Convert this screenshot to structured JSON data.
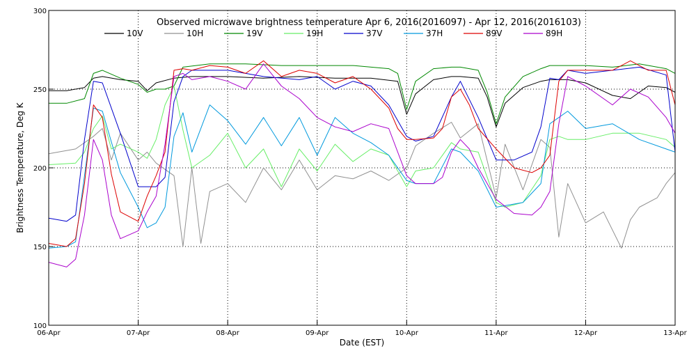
{
  "chart_data": {
    "type": "line",
    "title": "Observed microwave brightness temperature Apr  6, 2016(2016097) - Apr 12, 2016(2016103)",
    "xlabel": "Date (EST)",
    "ylabel": "Brightness Temperature, Deg K",
    "xlim": [
      0,
      7
    ],
    "ylim": [
      100,
      300
    ],
    "x_ticks": [
      {
        "x": 0,
        "label": "06-Apr"
      },
      {
        "x": 1,
        "label": "07-Apr"
      },
      {
        "x": 2,
        "label": "08-Apr"
      },
      {
        "x": 3,
        "label": "09-Apr"
      },
      {
        "x": 4,
        "label": "10-Apr"
      },
      {
        "x": 5,
        "label": "11-Apr"
      },
      {
        "x": 6,
        "label": "12-Apr"
      },
      {
        "x": 7,
        "label": "13-Apr"
      }
    ],
    "y_ticks": [
      {
        "y": 100,
        "label": "100"
      },
      {
        "y": 150,
        "label": "150"
      },
      {
        "y": 200,
        "label": "200"
      },
      {
        "y": 250,
        "label": "250"
      },
      {
        "y": 300,
        "label": "300"
      }
    ],
    "grid": "dotted",
    "legend_position": "top",
    "series": [
      {
        "name": "10V",
        "color": "#000000",
        "x": [
          0,
          0.2,
          0.4,
          0.5,
          0.6,
          0.8,
          1.0,
          1.1,
          1.2,
          1.4,
          1.6,
          2.0,
          2.4,
          2.8,
          3.2,
          3.6,
          3.9,
          4.0,
          4.1,
          4.3,
          4.5,
          4.6,
          4.8,
          4.9,
          5.0,
          5.1,
          5.3,
          5.5,
          5.6,
          5.8,
          6.0,
          6.3,
          6.5,
          6.7,
          6.9,
          7.0
        ],
        "y": [
          249,
          249,
          251,
          257,
          258,
          256,
          255,
          249,
          254,
          257,
          258,
          258,
          257,
          258,
          257,
          257,
          255,
          234,
          247,
          256,
          258,
          258,
          257,
          245,
          226,
          241,
          251,
          255,
          256,
          256,
          254,
          246,
          244,
          252,
          251,
          248
        ]
      },
      {
        "name": "10H",
        "color": "#909090",
        "x": [
          0,
          0.3,
          0.5,
          0.6,
          0.7,
          0.8,
          1.0,
          1.1,
          1.2,
          1.4,
          1.5,
          1.6,
          1.7,
          1.8,
          2.0,
          2.2,
          2.4,
          2.6,
          2.8,
          3.0,
          3.2,
          3.4,
          3.6,
          3.8,
          4.0,
          4.1,
          4.3,
          4.5,
          4.6,
          4.8,
          5.0,
          5.1,
          5.3,
          5.5,
          5.6,
          5.7,
          5.8,
          6.0,
          6.2,
          6.4,
          6.5,
          6.6,
          6.8,
          6.9,
          7.0
        ],
        "y": [
          209,
          212,
          220,
          225,
          205,
          222,
          205,
          210,
          203,
          195,
          150,
          200,
          152,
          185,
          190,
          178,
          200,
          186,
          205,
          186,
          195,
          193,
          198,
          192,
          200,
          214,
          222,
          229,
          219,
          228,
          181,
          215,
          186,
          218,
          213,
          156,
          190,
          165,
          172,
          149,
          167,
          175,
          181,
          190,
          197
        ]
      },
      {
        "name": "19V",
        "color": "#008800",
        "x": [
          0,
          0.2,
          0.4,
          0.5,
          0.6,
          0.8,
          1.0,
          1.1,
          1.2,
          1.3,
          1.4,
          1.5,
          1.8,
          2.2,
          2.6,
          3.0,
          3.4,
          3.8,
          3.9,
          4.0,
          4.1,
          4.3,
          4.5,
          4.6,
          4.8,
          4.9,
          5.0,
          5.1,
          5.3,
          5.5,
          5.6,
          5.8,
          6.0,
          6.3,
          6.6,
          6.9,
          7.0
        ],
        "y": [
          241,
          241,
          244,
          260,
          262,
          257,
          253,
          248,
          250,
          250,
          252,
          264,
          266,
          266,
          265,
          265,
          265,
          263,
          260,
          237,
          255,
          263,
          264,
          264,
          262,
          248,
          228,
          245,
          258,
          263,
          265,
          265,
          265,
          264,
          266,
          263,
          260
        ]
      },
      {
        "name": "19H",
        "color": "#66ee66",
        "x": [
          0,
          0.3,
          0.4,
          0.5,
          0.6,
          0.7,
          0.8,
          1.0,
          1.1,
          1.2,
          1.3,
          1.4,
          1.5,
          1.6,
          1.8,
          2.0,
          2.2,
          2.4,
          2.6,
          2.8,
          3.0,
          3.2,
          3.4,
          3.6,
          3.8,
          4.0,
          4.1,
          4.3,
          4.5,
          4.6,
          4.8,
          5.0,
          5.1,
          5.3,
          5.5,
          5.6,
          5.7,
          5.8,
          6.0,
          6.3,
          6.6,
          6.9,
          7.0
        ],
        "y": [
          202,
          203,
          210,
          225,
          233,
          212,
          215,
          210,
          206,
          218,
          240,
          252,
          224,
          200,
          208,
          222,
          200,
          212,
          188,
          212,
          198,
          215,
          204,
          212,
          208,
          188,
          198,
          200,
          216,
          212,
          210,
          178,
          175,
          178,
          195,
          218,
          220,
          218,
          218,
          222,
          222,
          218,
          213
        ]
      },
      {
        "name": "37V",
        "color": "#0000cc",
        "x": [
          0,
          0.2,
          0.3,
          0.4,
          0.5,
          0.6,
          0.8,
          1.0,
          1.2,
          1.3,
          1.4,
          1.5,
          1.6,
          2.0,
          2.4,
          2.8,
          3.0,
          3.2,
          3.4,
          3.6,
          3.8,
          4.0,
          4.1,
          4.3,
          4.5,
          4.6,
          4.8,
          5.0,
          5.2,
          5.4,
          5.5,
          5.6,
          5.7,
          5.8,
          6.0,
          6.3,
          6.6,
          6.9,
          7.0
        ],
        "y": [
          168,
          166,
          170,
          218,
          255,
          254,
          222,
          188,
          188,
          194,
          242,
          258,
          262,
          262,
          258,
          256,
          258,
          250,
          255,
          252,
          240,
          220,
          217,
          220,
          245,
          255,
          232,
          205,
          205,
          210,
          226,
          257,
          256,
          262,
          260,
          262,
          264,
          259,
          210
        ]
      },
      {
        "name": "37H",
        "color": "#0099dd",
        "x": [
          0,
          0.2,
          0.3,
          0.4,
          0.5,
          0.6,
          0.8,
          1.0,
          1.1,
          1.2,
          1.3,
          1.4,
          1.5,
          1.6,
          1.8,
          2.0,
          2.2,
          2.4,
          2.6,
          2.8,
          3.0,
          3.2,
          3.4,
          3.6,
          3.8,
          4.0,
          4.1,
          4.3,
          4.5,
          4.6,
          4.8,
          5.0,
          5.1,
          5.3,
          5.5,
          5.6,
          5.7,
          5.8,
          6.0,
          6.3,
          6.6,
          6.9,
          7.0
        ],
        "y": [
          149,
          150,
          153,
          195,
          238,
          236,
          197,
          175,
          162,
          165,
          175,
          220,
          235,
          210,
          240,
          230,
          215,
          232,
          214,
          232,
          208,
          232,
          222,
          216,
          208,
          192,
          190,
          190,
          212,
          210,
          198,
          175,
          176,
          178,
          190,
          228,
          232,
          236,
          225,
          228,
          218,
          212,
          210
        ]
      },
      {
        "name": "89V",
        "color": "#dd0000",
        "x": [
          0,
          0.2,
          0.3,
          0.4,
          0.5,
          0.6,
          0.7,
          0.8,
          1.0,
          1.1,
          1.2,
          1.3,
          1.4,
          1.5,
          1.6,
          1.8,
          2.0,
          2.2,
          2.4,
          2.6,
          2.8,
          3.0,
          3.2,
          3.4,
          3.6,
          3.8,
          3.9,
          4.0,
          4.1,
          4.3,
          4.4,
          4.5,
          4.6,
          4.7,
          4.8,
          5.0,
          5.2,
          5.4,
          5.5,
          5.6,
          5.7,
          5.8,
          6.0,
          6.3,
          6.5,
          6.7,
          6.9,
          7.0
        ],
        "y": [
          152,
          150,
          155,
          190,
          240,
          232,
          196,
          172,
          166,
          182,
          195,
          210,
          262,
          263,
          262,
          265,
          264,
          260,
          268,
          258,
          262,
          260,
          254,
          258,
          250,
          238,
          225,
          218,
          218,
          219,
          225,
          245,
          250,
          240,
          225,
          212,
          200,
          197,
          200,
          208,
          255,
          262,
          262,
          262,
          268,
          262,
          262,
          240
        ]
      },
      {
        "name": "89H",
        "color": "#aa00cc",
        "x": [
          0,
          0.2,
          0.3,
          0.4,
          0.5,
          0.6,
          0.7,
          0.8,
          1.0,
          1.1,
          1.2,
          1.3,
          1.4,
          1.5,
          1.6,
          1.8,
          2.0,
          2.2,
          2.4,
          2.6,
          2.8,
          3.0,
          3.2,
          3.4,
          3.6,
          3.8,
          4.0,
          4.1,
          4.3,
          4.4,
          4.5,
          4.6,
          4.7,
          4.8,
          5.0,
          5.2,
          5.4,
          5.5,
          5.6,
          5.7,
          5.8,
          6.0,
          6.3,
          6.5,
          6.7,
          6.9,
          7.0
        ],
        "y": [
          140,
          137,
          142,
          170,
          218,
          205,
          170,
          155,
          160,
          172,
          182,
          215,
          258,
          260,
          256,
          258,
          255,
          250,
          266,
          252,
          244,
          232,
          226,
          223,
          228,
          225,
          195,
          190,
          190,
          194,
          210,
          218,
          212,
          200,
          180,
          171,
          170,
          175,
          185,
          228,
          258,
          252,
          240,
          250,
          245,
          232,
          222
        ]
      }
    ]
  }
}
